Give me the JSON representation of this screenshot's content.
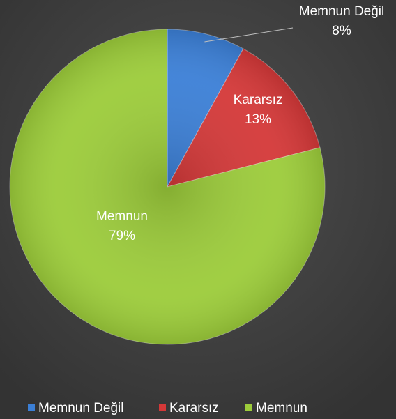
{
  "chart_data": {
    "type": "pie",
    "categories": [
      "Memnun Değil",
      "Kararsız",
      "Memnun"
    ],
    "values": [
      8,
      13,
      79
    ],
    "value_labels": [
      "8%",
      "13%",
      "79%"
    ],
    "colors": [
      "#3b7fd6",
      "#d43838",
      "#9ccc3a"
    ],
    "legend": "bottom"
  }
}
